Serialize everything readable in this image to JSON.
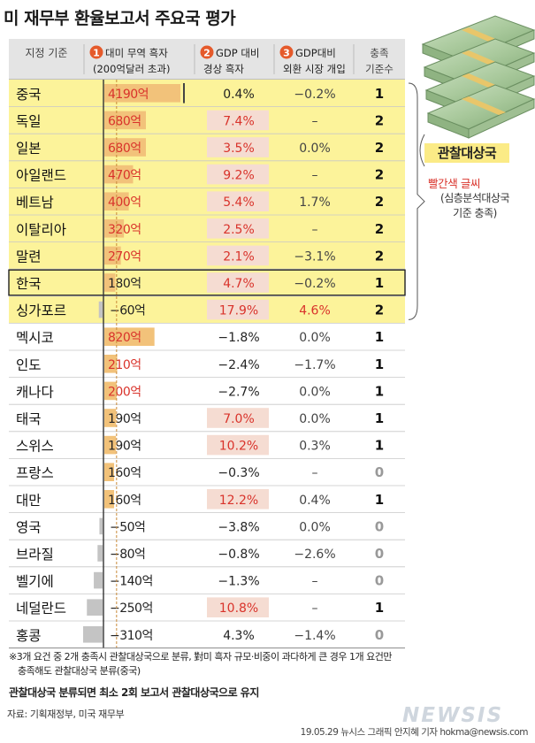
{
  "title": "미 재무부 환율보고서 주요국 평가",
  "header": {
    "col0": "지정 기준",
    "col1_num": "1",
    "col1_line1": "대미 무역 흑자",
    "col1_line2": "(200억달러 초과)",
    "col2_num": "2",
    "col2_line1": "GDP 대비",
    "col2_line2": "경상 흑자",
    "col3_num": "3",
    "col3_line1": "GDP대비",
    "col3_line2": "외환 시장 개입",
    "col4_line1": "충족",
    "col4_line2": "기준수"
  },
  "side": {
    "label": "관찰대상국",
    "red_note": "빨간색 글씨",
    "note_line1": "(심층분석대상국",
    "note_line2": "기준 충족)"
  },
  "chart_data": {
    "type": "table",
    "trade_threshold": 200,
    "rows": [
      {
        "country": "중국",
        "trade": 4190,
        "trade_label": "4190억",
        "trade_red": true,
        "gdp": "0.4%",
        "gdp_red": false,
        "gdp_hl": false,
        "fx": "−0.2%",
        "fx_red": false,
        "count": "1",
        "watch": true
      },
      {
        "country": "독일",
        "trade": 680,
        "trade_label": "680억",
        "trade_red": true,
        "gdp": "7.4%",
        "gdp_red": true,
        "gdp_hl": true,
        "fx": "–",
        "fx_red": false,
        "count": "2",
        "watch": true
      },
      {
        "country": "일본",
        "trade": 680,
        "trade_label": "680억",
        "trade_red": true,
        "gdp": "3.5%",
        "gdp_red": true,
        "gdp_hl": true,
        "fx": "0.0%",
        "fx_red": false,
        "count": "2",
        "watch": true
      },
      {
        "country": "아일랜드",
        "trade": 470,
        "trade_label": "470억",
        "trade_red": true,
        "gdp": "9.2%",
        "gdp_red": true,
        "gdp_hl": true,
        "fx": "–",
        "fx_red": false,
        "count": "2",
        "watch": true
      },
      {
        "country": "베트남",
        "trade": 400,
        "trade_label": "400억",
        "trade_red": true,
        "gdp": "5.4%",
        "gdp_red": true,
        "gdp_hl": true,
        "fx": "1.7%",
        "fx_red": false,
        "count": "2",
        "watch": true
      },
      {
        "country": "이탈리아",
        "trade": 320,
        "trade_label": "320억",
        "trade_red": true,
        "gdp": "2.5%",
        "gdp_red": true,
        "gdp_hl": true,
        "fx": "–",
        "fx_red": false,
        "count": "2",
        "watch": true
      },
      {
        "country": "말련",
        "trade": 270,
        "trade_label": "270억",
        "trade_red": true,
        "gdp": "2.1%",
        "gdp_red": true,
        "gdp_hl": true,
        "fx": "−3.1%",
        "fx_red": false,
        "count": "2",
        "watch": true
      },
      {
        "country": "한국",
        "trade": 180,
        "trade_label": "180억",
        "trade_red": false,
        "gdp": "4.7%",
        "gdp_red": true,
        "gdp_hl": true,
        "fx": "−0.2%",
        "fx_red": false,
        "count": "1",
        "watch": true,
        "korea": true
      },
      {
        "country": "싱가포르",
        "trade": -60,
        "trade_label": "−60억",
        "trade_red": false,
        "gdp": "17.9%",
        "gdp_red": true,
        "gdp_hl": true,
        "fx": "4.6%",
        "fx_red": true,
        "count": "2",
        "watch": true
      },
      {
        "country": "멕시코",
        "trade": 820,
        "trade_label": "820억",
        "trade_red": true,
        "gdp": "−1.8%",
        "gdp_red": false,
        "gdp_hl": false,
        "fx": "0.0%",
        "fx_red": false,
        "count": "1",
        "watch": false
      },
      {
        "country": "인도",
        "trade": 210,
        "trade_label": "210억",
        "trade_red": true,
        "gdp": "−2.4%",
        "gdp_red": false,
        "gdp_hl": false,
        "fx": "−1.7%",
        "fx_red": false,
        "count": "1",
        "watch": false
      },
      {
        "country": "캐나다",
        "trade": 200,
        "trade_label": "200억",
        "trade_red": true,
        "gdp": "−2.7%",
        "gdp_red": false,
        "gdp_hl": false,
        "fx": "0.0%",
        "fx_red": false,
        "count": "1",
        "watch": false
      },
      {
        "country": "태국",
        "trade": 190,
        "trade_label": "190억",
        "trade_red": false,
        "gdp": "7.0%",
        "gdp_red": true,
        "gdp_hl": true,
        "fx": "0.0%",
        "fx_red": false,
        "count": "1",
        "watch": false
      },
      {
        "country": "스위스",
        "trade": 190,
        "trade_label": "190억",
        "trade_red": false,
        "gdp": "10.2%",
        "gdp_red": true,
        "gdp_hl": true,
        "fx": "0.3%",
        "fx_red": false,
        "count": "1",
        "watch": false
      },
      {
        "country": "프랑스",
        "trade": 160,
        "trade_label": "160억",
        "trade_red": false,
        "gdp": "−0.3%",
        "gdp_red": false,
        "gdp_hl": false,
        "fx": "–",
        "fx_red": false,
        "count": "0",
        "watch": false
      },
      {
        "country": "대만",
        "trade": 160,
        "trade_label": "160억",
        "trade_red": false,
        "gdp": "12.2%",
        "gdp_red": true,
        "gdp_hl": true,
        "fx": "0.4%",
        "fx_red": false,
        "count": "1",
        "watch": false
      },
      {
        "country": "영국",
        "trade": -50,
        "trade_label": "−50억",
        "trade_red": false,
        "gdp": "−3.8%",
        "gdp_red": false,
        "gdp_hl": false,
        "fx": "0.0%",
        "fx_red": false,
        "count": "0",
        "watch": false
      },
      {
        "country": "브라질",
        "trade": -80,
        "trade_label": "−80억",
        "trade_red": false,
        "gdp": "−0.8%",
        "gdp_red": false,
        "gdp_hl": false,
        "fx": "−2.6%",
        "fx_red": false,
        "count": "0",
        "watch": false
      },
      {
        "country": "벨기에",
        "trade": -140,
        "trade_label": "−140억",
        "trade_red": false,
        "gdp": "−1.3%",
        "gdp_red": false,
        "gdp_hl": false,
        "fx": "–",
        "fx_red": false,
        "count": "0",
        "watch": false
      },
      {
        "country": "네덜란드",
        "trade": -250,
        "trade_label": "−250억",
        "trade_red": false,
        "gdp": "10.8%",
        "gdp_red": true,
        "gdp_hl": true,
        "fx": "–",
        "fx_red": false,
        "count": "1",
        "watch": false
      },
      {
        "country": "홍콩",
        "trade": -310,
        "trade_label": "−310억",
        "trade_red": false,
        "gdp": "4.3%",
        "gdp_red": false,
        "gdp_hl": false,
        "fx": "−1.4%",
        "fx_red": false,
        "count": "0",
        "watch": false
      }
    ]
  },
  "colors": {
    "watch_band": "#fcf39a",
    "positive_bar": "#f2c27a",
    "negative_bar": "#c4c4c4",
    "red_text": "#d9332b",
    "cell_highlight": "#f5dcd2",
    "header_bg": "#e4e4e4",
    "number_badge": "#e55a2b"
  },
  "footnotes": {
    "line1": "※3개 요건 중 2개 충족시 관찰대상국으로 분류, 對미 흑자 규모·비중이 과다하게 큰 경우 1개 요건만",
    "line2": "충족해도 관찰대상국 분류(중국)",
    "bold": "관찰대상국 분류되면 최소 2회 보고서 관찰대상국으로 유지"
  },
  "source": "자료: 기획재정부, 미국 재무부",
  "logo": "NEWSIS",
  "credit": "19.05.29  뉴시스 그래픽 안지혜 기자  hokma@newsis.com"
}
